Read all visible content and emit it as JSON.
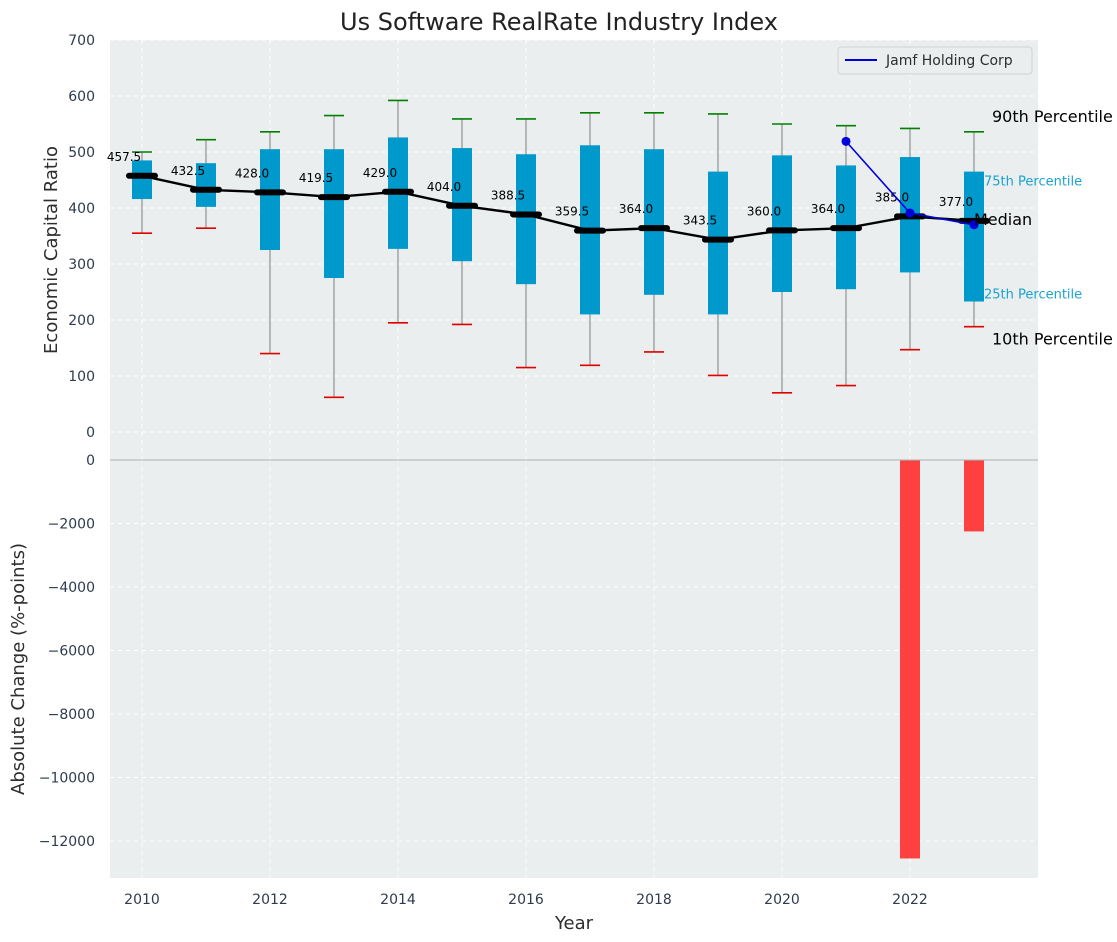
{
  "chart_data": [
    {
      "type": "box",
      "title": "Us Software RealRate Industry Index",
      "ylabel": "Economic Capital Ratio",
      "ylim": [
        0,
        700
      ],
      "yticks": [
        0,
        100,
        200,
        300,
        400,
        500,
        600,
        700
      ],
      "grid": true,
      "x": [
        2010,
        2011,
        2012,
        2013,
        2014,
        2015,
        2016,
        2017,
        2018,
        2019,
        2020,
        2021,
        2022,
        2023
      ],
      "p90": [
        500,
        522,
        536,
        565,
        592,
        559,
        559,
        570,
        570,
        568,
        550,
        547,
        542,
        536
      ],
      "q3": [
        485,
        480,
        505,
        505,
        526,
        507,
        496,
        512,
        505,
        465,
        494,
        476,
        491,
        465
      ],
      "median": [
        457.5,
        432.5,
        428.0,
        419.5,
        429.0,
        404.0,
        388.5,
        359.5,
        364.0,
        343.5,
        360.0,
        364.0,
        385.0,
        377.0
      ],
      "q1": [
        416,
        402,
        325,
        275,
        327,
        305,
        264,
        210,
        245,
        210,
        250,
        255,
        285,
        233
      ],
      "p10": [
        355,
        364,
        140,
        62,
        195,
        192,
        115,
        119,
        143,
        101,
        70,
        83,
        147,
        188
      ],
      "company_series": {
        "name": "Jamf Holding Corp",
        "x": [
          2021,
          2022,
          2023
        ],
        "y": [
          519,
          391,
          370
        ]
      },
      "legend": {
        "position": "top-right",
        "entries": [
          "Jamf Holding Corp"
        ]
      },
      "annotations": {
        "p90": "90th Percentile",
        "q3": "75th Percentile",
        "median": "Median",
        "q1": "25th Percentile",
        "p10": "10th Percentile"
      }
    },
    {
      "type": "bar",
      "ylabel": "Absolute Change (%-points)",
      "xlabel": "Year",
      "ylim": [
        -13000,
        0
      ],
      "yticks": [
        0,
        -2000,
        -4000,
        -6000,
        -8000,
        -10000,
        -12000
      ],
      "xticks": [
        2010,
        2012,
        2014,
        2016,
        2018,
        2020,
        2022
      ],
      "grid": true,
      "x": [
        2022,
        2023
      ],
      "values": [
        -12550,
        -2250
      ]
    }
  ],
  "colors": {
    "plot_bg": "#eaeeee",
    "box": "#0099cc",
    "median_line": "#000000",
    "whisker": "#808080",
    "p90_cap": "#008000",
    "p10_cap": "#e00000",
    "company": "#0000dd",
    "bar": "#ff4040"
  }
}
